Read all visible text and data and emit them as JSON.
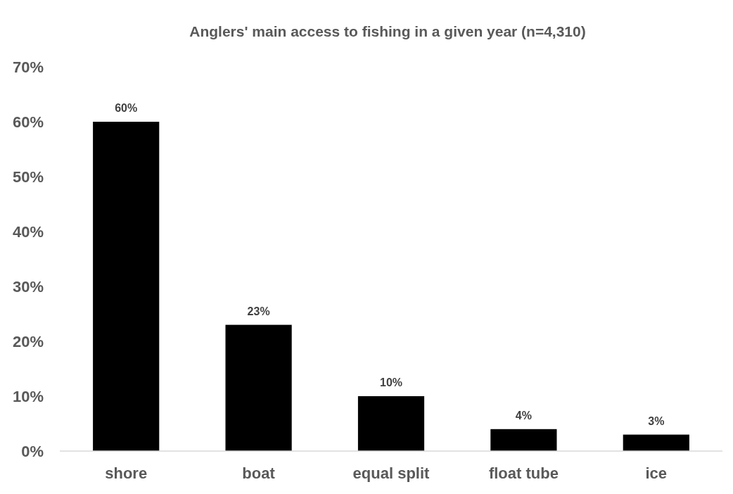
{
  "chart_data": {
    "type": "bar",
    "title": "Anglers' main access to fishing in a given year (n=4,310)",
    "categories": [
      "shore",
      "boat",
      "equal split",
      "float tube",
      "ice"
    ],
    "values": [
      60,
      23,
      10,
      4,
      3
    ],
    "color": "#000000",
    "ylim": [
      0,
      70
    ],
    "yticks": [
      {
        "value": 0,
        "label": "0%"
      },
      {
        "value": 10,
        "label": "10%"
      },
      {
        "value": 20,
        "label": "20%"
      },
      {
        "value": 30,
        "label": "30%"
      },
      {
        "value": 40,
        "label": "40%"
      },
      {
        "value": 50,
        "label": "50%"
      },
      {
        "value": 60,
        "label": "60%"
      },
      {
        "value": 70,
        "label": "70%"
      }
    ],
    "value_labels": [
      "60%",
      "23%",
      "10%",
      "4%",
      "3%"
    ],
    "grid": false
  }
}
